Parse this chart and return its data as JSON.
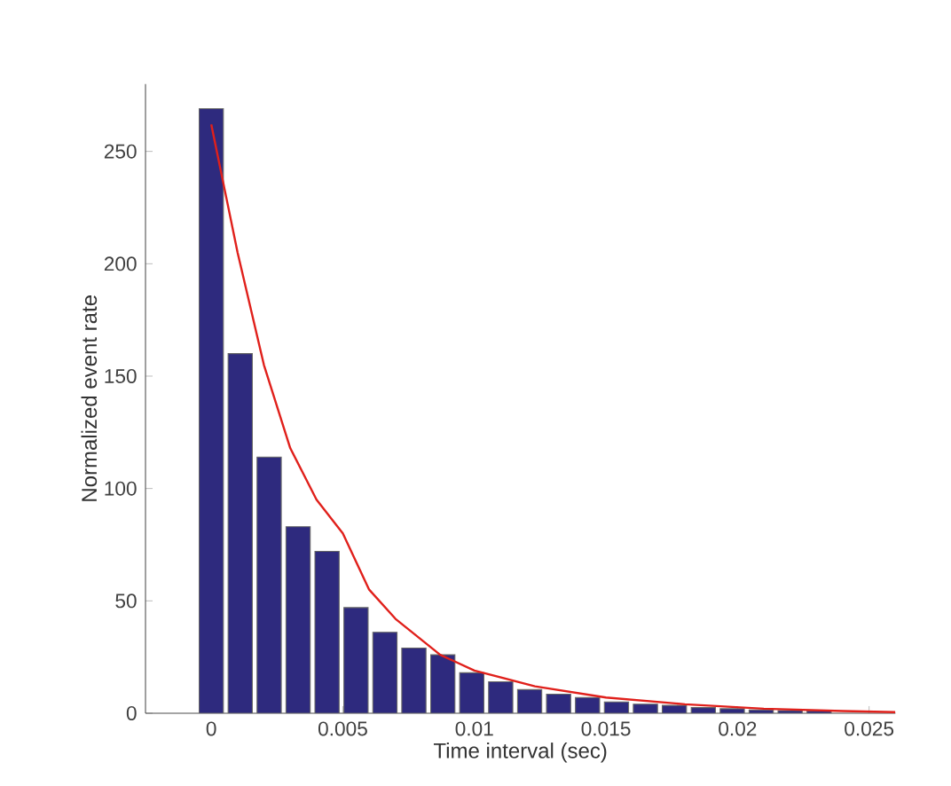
{
  "chart_data": {
    "type": "bar",
    "xlabel": "Time interval (sec)",
    "ylabel": "Normalized event rate",
    "x": [
      0,
      0.0011,
      0.0022,
      0.0033,
      0.0044,
      0.0055,
      0.0066,
      0.0077,
      0.0088,
      0.0099,
      0.011,
      0.0121,
      0.0132,
      0.0143,
      0.0154,
      0.0165,
      0.0176,
      0.0187,
      0.0198,
      0.0209,
      0.022,
      0.0231
    ],
    "series": [
      {
        "color": "#2e2a7e",
        "values": [
          269,
          160,
          114,
          83,
          72,
          47,
          36,
          29,
          26,
          18,
          14,
          10.5,
          8.5,
          7,
          5,
          4,
          3.5,
          2.5,
          2,
          1.5,
          1.2,
          1
        ]
      },
      {
        "type": "line",
        "color": "#e0201b",
        "x": [
          0,
          0.001,
          0.002,
          0.003,
          0.004,
          0.005,
          0.006,
          0.007,
          0.0087,
          0.01,
          0.0123,
          0.015,
          0.018,
          0.021,
          0.024,
          0.026
        ],
        "values": [
          262,
          205,
          155,
          118,
          95,
          80,
          55,
          42,
          26,
          19,
          12,
          7,
          4,
          2,
          1,
          0.5
        ]
      }
    ],
    "xlim": [
      -0.0025,
      0.026
    ],
    "ylim": [
      0,
      280
    ],
    "xticks": [
      0,
      0.005,
      0.01,
      0.015,
      0.02,
      0.025
    ],
    "yticks": [
      0,
      50,
      100,
      150,
      200,
      250
    ],
    "grid": false,
    "marker": "none",
    "line_style": "solid"
  }
}
